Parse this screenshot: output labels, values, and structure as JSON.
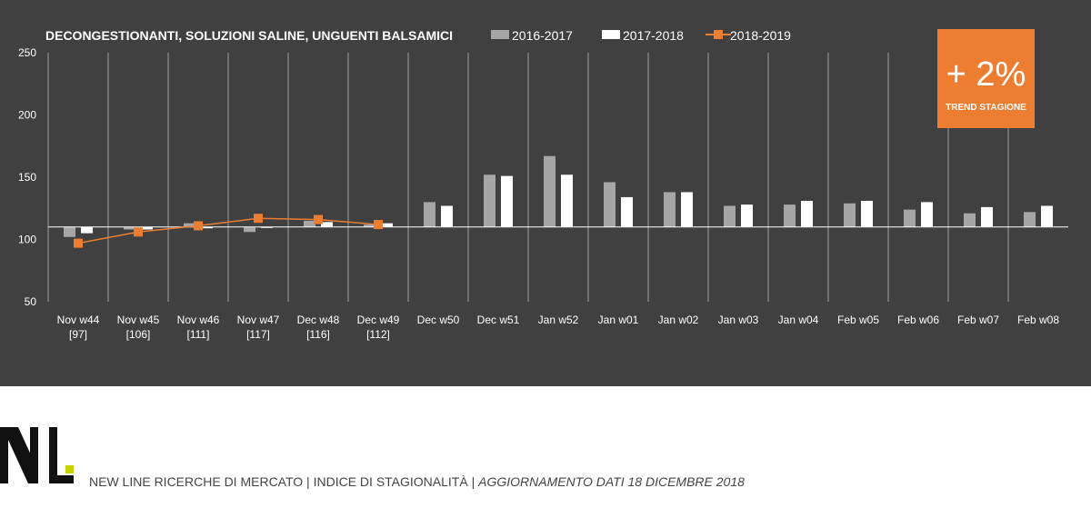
{
  "chart_data": {
    "type": "bar",
    "title": "DECONGESTIONANTI, SOLUZIONI SALINE, UNGUENTI BALSAMICI",
    "categories": [
      "Nov w44",
      "Nov w45",
      "Nov w46",
      "Nov w47",
      "Dec w48",
      "Dec w49",
      "Dec w50",
      "Dec w51",
      "Jan w52",
      "Jan w01",
      "Jan w02",
      "Jan w03",
      "Jan w04",
      "Feb w05",
      "Feb w06",
      "Feb w07",
      "Feb w08"
    ],
    "category_sublabels": [
      "[97]",
      "[106]",
      "[111]",
      "[117]",
      "[116]",
      "[112]",
      "",
      "",
      "",
      "",
      "",
      "",
      "",
      "",
      "",
      "",
      ""
    ],
    "series": [
      {
        "name": "2016-2017",
        "type": "bar",
        "color": "#A6A6A6",
        "values": [
          102,
          108,
          113,
          106,
          115,
          112,
          130,
          152,
          167,
          146,
          138,
          127,
          128,
          129,
          124,
          121,
          122
        ]
      },
      {
        "name": "2017-2018",
        "type": "bar",
        "color": "#FFFFFF",
        "values": [
          105,
          108,
          109,
          110,
          114,
          113,
          127,
          151,
          152,
          134,
          138,
          128,
          131,
          131,
          130,
          126,
          127
        ]
      },
      {
        "name": "2018-2019",
        "type": "line",
        "color": "#ED7D31",
        "values": [
          97,
          106,
          111,
          117,
          116,
          112,
          null,
          null,
          null,
          null,
          null,
          null,
          null,
          null,
          null,
          null,
          null
        ]
      }
    ],
    "ylim": [
      50,
      250
    ],
    "yticks": [
      50,
      100,
      150,
      200,
      250
    ],
    "baseline": 110,
    "grid": "vertical",
    "legend_position": "top"
  },
  "trend": {
    "value": "+ 2%",
    "label": "TREND STAGIONE",
    "color": "#ED7D31"
  },
  "footer": {
    "company": "NEW LINE RICERCHE DI MERCATO",
    "separator": " | ",
    "report": "INDICE DI STAGIONALITÀ",
    "update": "AGGIORNAMENTO DATI  18 DICEMBRE 2018"
  }
}
